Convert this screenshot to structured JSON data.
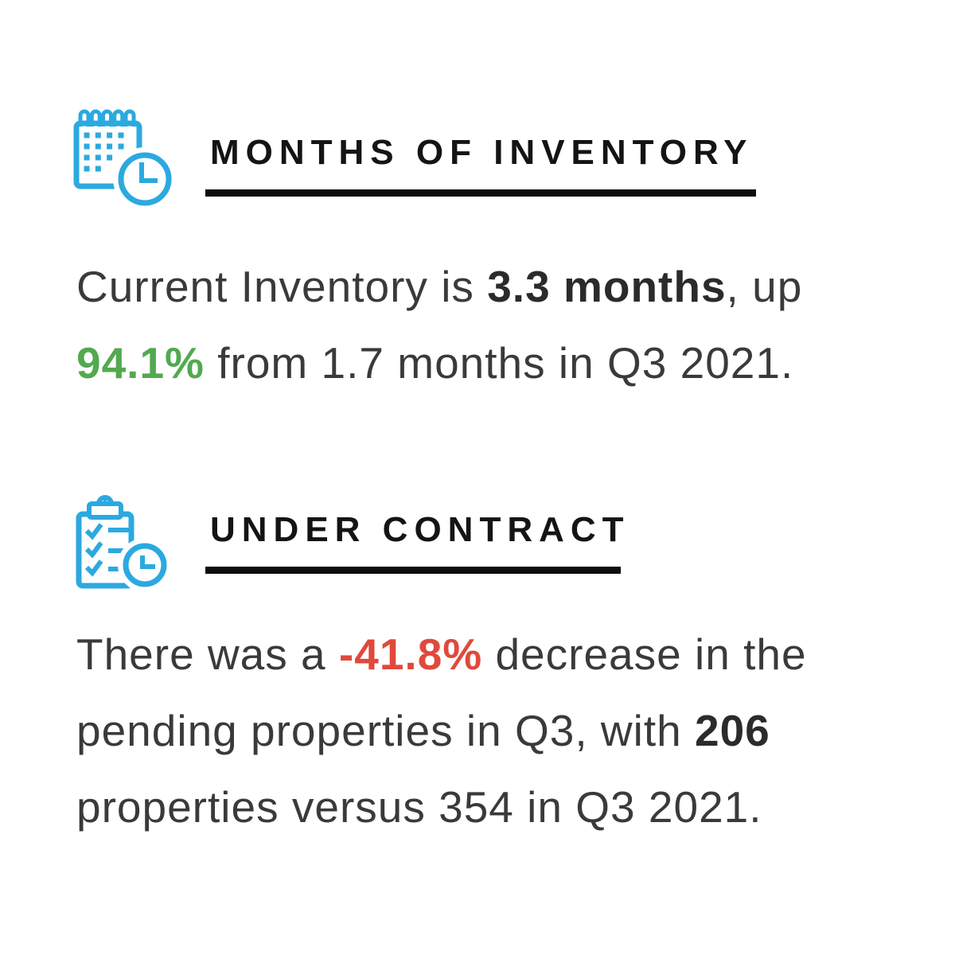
{
  "colors": {
    "blue": "#2BA9E0",
    "green": "#52A94F",
    "red": "#E0493C",
    "heading": "#141414",
    "underline": "#0d0d0d",
    "body": "#3A3A3C"
  },
  "sections": [
    {
      "title": "MONTHS OF INVENTORY",
      "icon": "calendar-clock-icon",
      "lines": [
        [
          {
            "t": "Current Inventory is "
          },
          {
            "t": "3.3 months",
            "bold": true
          },
          {
            "t": ", up"
          }
        ],
        [
          {
            "t": "94.1%",
            "bold": true,
            "color": "green"
          },
          {
            "t": " from 1.7 months in Q3 2021."
          }
        ]
      ]
    },
    {
      "title": "UNDER CONTRACT",
      "icon": "clipboard-clock-icon",
      "lines": [
        [
          {
            "t": "There was a "
          },
          {
            "t": "-41.8%",
            "bold": true,
            "color": "red"
          },
          {
            "t": " decrease in the"
          }
        ],
        [
          {
            "t": "pending properties in Q3, with "
          },
          {
            "t": "206",
            "bold": true
          }
        ],
        [
          {
            "t": "properties versus 354 in Q3 2021."
          }
        ]
      ]
    }
  ]
}
